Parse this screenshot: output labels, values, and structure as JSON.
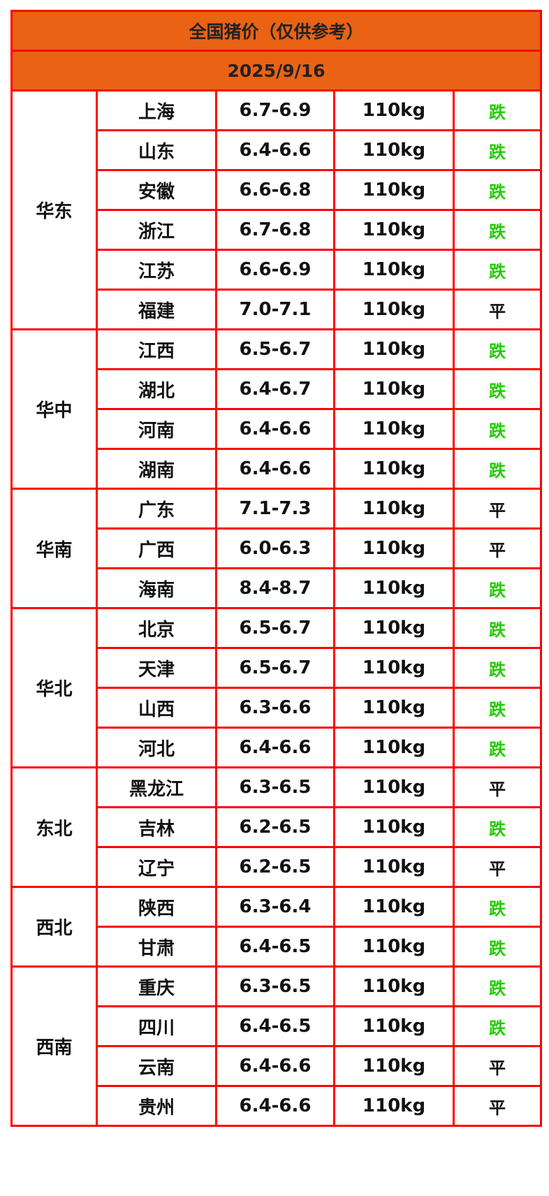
{
  "title": "全国猪价（仅供参考）",
  "date": "2025/9/16",
  "colors": {
    "header_bg": "#ea6214",
    "border": "#ff0000",
    "down": "#22cc00",
    "flat": "#111111"
  },
  "regions": [
    {
      "name": "华东",
      "rows": [
        {
          "province": "上海",
          "price": "6.7-6.9",
          "weight": "110kg",
          "trend": "跌"
        },
        {
          "province": "山东",
          "price": "6.4-6.6",
          "weight": "110kg",
          "trend": "跌"
        },
        {
          "province": "安徽",
          "price": "6.6-6.8",
          "weight": "110kg",
          "trend": "跌"
        },
        {
          "province": "浙江",
          "price": "6.7-6.8",
          "weight": "110kg",
          "trend": "跌"
        },
        {
          "province": "江苏",
          "price": "6.6-6.9",
          "weight": "110kg",
          "trend": "跌"
        },
        {
          "province": "福建",
          "price": "7.0-7.1",
          "weight": "110kg",
          "trend": "平"
        }
      ]
    },
    {
      "name": "华中",
      "rows": [
        {
          "province": "江西",
          "price": "6.5-6.7",
          "weight": "110kg",
          "trend": "跌"
        },
        {
          "province": "湖北",
          "price": "6.4-6.7",
          "weight": "110kg",
          "trend": "跌"
        },
        {
          "province": "河南",
          "price": "6.4-6.6",
          "weight": "110kg",
          "trend": "跌"
        },
        {
          "province": "湖南",
          "price": "6.4-6.6",
          "weight": "110kg",
          "trend": "跌"
        }
      ]
    },
    {
      "name": "华南",
      "rows": [
        {
          "province": "广东",
          "price": "7.1-7.3",
          "weight": "110kg",
          "trend": "平"
        },
        {
          "province": "广西",
          "price": "6.0-6.3",
          "weight": "110kg",
          "trend": "平"
        },
        {
          "province": "海南",
          "price": "8.4-8.7",
          "weight": "110kg",
          "trend": "跌"
        }
      ]
    },
    {
      "name": "华北",
      "rows": [
        {
          "province": "北京",
          "price": "6.5-6.7",
          "weight": "110kg",
          "trend": "跌"
        },
        {
          "province": "天津",
          "price": "6.5-6.7",
          "weight": "110kg",
          "trend": "跌"
        },
        {
          "province": "山西",
          "price": "6.3-6.6",
          "weight": "110kg",
          "trend": "跌"
        },
        {
          "province": "河北",
          "price": "6.4-6.6",
          "weight": "110kg",
          "trend": "跌"
        }
      ]
    },
    {
      "name": "东北",
      "rows": [
        {
          "province": "黑龙江",
          "price": "6.3-6.5",
          "weight": "110kg",
          "trend": "平"
        },
        {
          "province": "吉林",
          "price": "6.2-6.5",
          "weight": "110kg",
          "trend": "跌"
        },
        {
          "province": "辽宁",
          "price": "6.2-6.5",
          "weight": "110kg",
          "trend": "平"
        }
      ]
    },
    {
      "name": "西北",
      "rows": [
        {
          "province": "陕西",
          "price": "6.3-6.4",
          "weight": "110kg",
          "trend": "跌"
        },
        {
          "province": "甘肃",
          "price": "6.4-6.5",
          "weight": "110kg",
          "trend": "跌"
        }
      ]
    },
    {
      "name": "西南",
      "rows": [
        {
          "province": "重庆",
          "price": "6.3-6.5",
          "weight": "110kg",
          "trend": "跌"
        },
        {
          "province": "四川",
          "price": "6.4-6.5",
          "weight": "110kg",
          "trend": "跌"
        },
        {
          "province": "云南",
          "price": "6.4-6.6",
          "weight": "110kg",
          "trend": "平"
        },
        {
          "province": "贵州",
          "price": "6.4-6.6",
          "weight": "110kg",
          "trend": "平"
        }
      ]
    }
  ]
}
